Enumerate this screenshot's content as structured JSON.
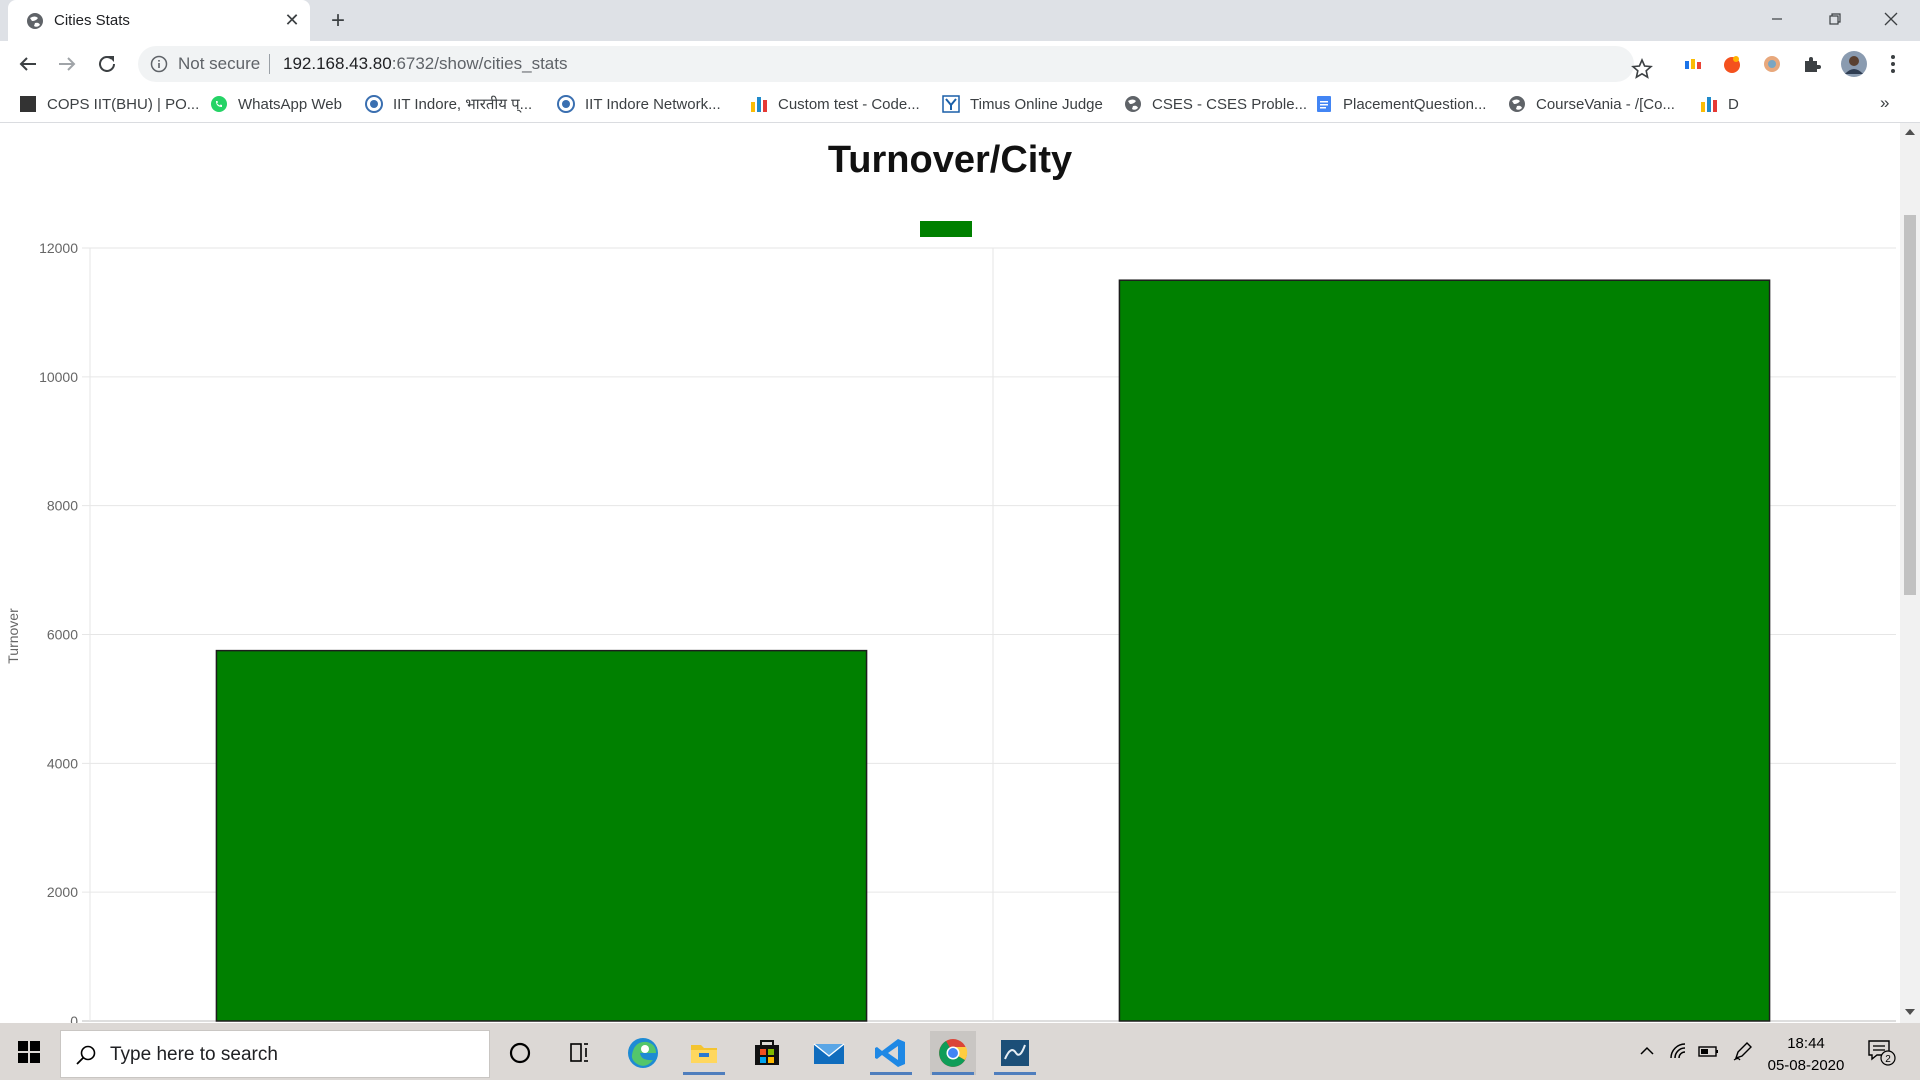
{
  "browser": {
    "tab_title": "Cities Stats",
    "new_tab_symbol": "+",
    "close_symbol": "✕",
    "security_label": "Not secure",
    "url_host": "192.168.43.80",
    "url_path": ":6732/show/cities_stats",
    "bookmarks_more": "»",
    "icons": [
      "back-arrow-icon",
      "forward-arrow-icon",
      "reload-icon",
      "info-icon",
      "star-icon",
      "puzzle-icon",
      "menu-icon"
    ]
  },
  "bookmarks": [
    {
      "label": "COPS IIT(BHU) | PO...",
      "icon": "cops-icon",
      "color": "#333333"
    },
    {
      "label": "WhatsApp Web",
      "icon": "whatsapp-icon",
      "color": "#25d366"
    },
    {
      "label": "IIT Indore, भारतीय प्...",
      "icon": "iit-indore-icon",
      "color": "#3a6fb0"
    },
    {
      "label": "IIT Indore Network...",
      "icon": "iit-indore-icon",
      "color": "#3a6fb0"
    },
    {
      "label": "Custom test - Code...",
      "icon": "codeforces-icon",
      "color": "#1f8acb"
    },
    {
      "label": "Timus Online Judge",
      "icon": "timus-icon",
      "color": "#1a5fa8"
    },
    {
      "label": "CSES - CSES Proble...",
      "icon": "globe-icon",
      "color": "#5f6368"
    },
    {
      "label": "PlacementQuestion...",
      "icon": "docs-icon",
      "color": "#4285f4"
    },
    {
      "label": "CourseVania - /[Co...",
      "icon": "globe-icon",
      "color": "#5f6368"
    },
    {
      "label": "D",
      "icon": "codeforces-icon",
      "color": "#1f8acb"
    }
  ],
  "chart_data": {
    "type": "bar",
    "title": "Turnover/City",
    "ylabel": "Turnover",
    "xlabel": "",
    "categories": [
      "",
      ""
    ],
    "series": [
      {
        "values": [
          5750,
          11500
        ],
        "color": "#008000"
      }
    ],
    "ylim": [
      0,
      12000
    ],
    "yticks": [
      0,
      2000,
      4000,
      6000,
      8000,
      10000,
      12000
    ],
    "grid": true,
    "legend": "top-center"
  },
  "taskbar": {
    "search_placeholder": "Type here to search",
    "time": "18:44",
    "date": "05-08-2020",
    "notification_count": "2",
    "apps": [
      "cortana-icon",
      "task-view-icon",
      "edge-icon",
      "file-explorer-icon",
      "store-icon",
      "mail-icon",
      "vscode-icon",
      "chrome-icon",
      "mysql-workbench-icon"
    ]
  }
}
